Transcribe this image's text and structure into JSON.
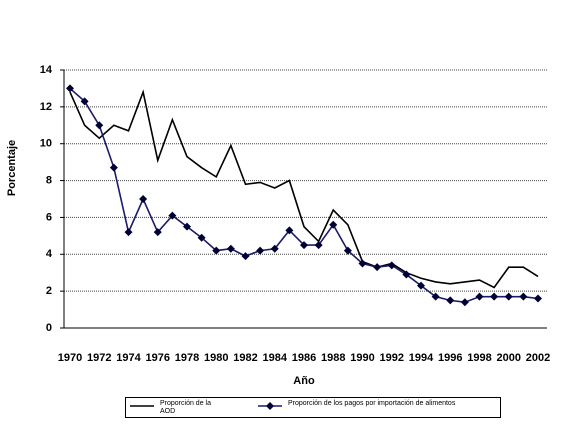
{
  "chart_data": {
    "type": "line",
    "xlabel": "Año",
    "ylabel": "Porcentaje",
    "categories": [
      "1970",
      null,
      "1972",
      null,
      "1974",
      null,
      "1976",
      null,
      "1978",
      null,
      "1980",
      null,
      "1982",
      null,
      "1984",
      null,
      "1986",
      null,
      "1988",
      null,
      "1990",
      null,
      "1992",
      null,
      "1994",
      null,
      "1996",
      null,
      "1998",
      null,
      "2000",
      null,
      "2002"
    ],
    "series": [
      {
        "name": "Proporción de la AOD",
        "color": "#000000",
        "marker": false,
        "values": [
          12.8,
          11.0,
          10.3,
          11.0,
          10.7,
          12.8,
          9.1,
          11.3,
          9.3,
          8.7,
          8.2,
          9.9,
          7.8,
          7.9,
          7.6,
          8.0,
          5.5,
          4.7,
          6.4,
          5.6,
          3.6,
          3.3,
          3.5,
          3.0,
          2.7,
          2.5,
          2.4,
          2.5,
          2.6,
          2.2,
          3.3,
          3.3,
          2.8
        ]
      },
      {
        "name": "Proporción de los pagos por importación de alimentos",
        "color": "#1a1a6e",
        "marker": true,
        "values": [
          13.0,
          12.3,
          11.0,
          8.7,
          5.2,
          7.0,
          5.2,
          6.1,
          5.5,
          4.9,
          4.2,
          4.3,
          3.9,
          4.2,
          4.3,
          5.3,
          4.5,
          4.5,
          5.6,
          4.2,
          3.5,
          3.3,
          3.4,
          2.9,
          2.3,
          1.7,
          1.5,
          1.4,
          1.7,
          1.7,
          1.7,
          1.7,
          1.6
        ]
      }
    ],
    "ylim": [
      0,
      14
    ],
    "yticks": [
      0,
      2,
      4,
      6,
      8,
      10,
      12,
      14
    ],
    "grid": true
  }
}
